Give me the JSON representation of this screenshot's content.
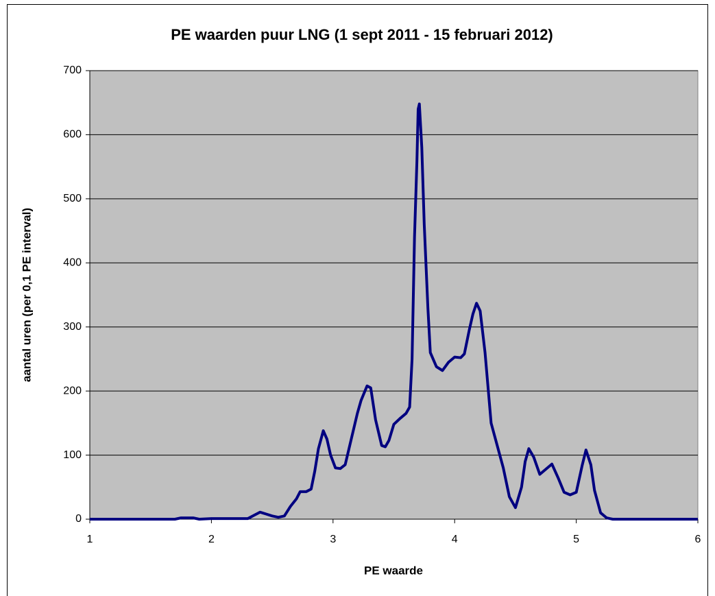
{
  "chart_data": {
    "type": "line",
    "title": "PE waarden puur LNG (1 sept 2011 - 15 februari 2012)",
    "x_label": "PE waarde",
    "y_label": "aantal uren (per 0,1 PE interval)",
    "x": [
      1.0,
      1.2,
      1.4,
      1.6,
      1.7,
      1.75,
      1.85,
      1.9,
      2.0,
      2.1,
      2.3,
      2.35,
      2.4,
      2.45,
      2.5,
      2.55,
      2.6,
      2.65,
      2.7,
      2.73,
      2.78,
      2.82,
      2.85,
      2.88,
      2.92,
      2.95,
      2.98,
      3.02,
      3.06,
      3.1,
      3.15,
      3.2,
      3.23,
      3.28,
      3.31,
      3.35,
      3.4,
      3.43,
      3.46,
      3.5,
      3.55,
      3.6,
      3.63,
      3.65,
      3.67,
      3.69,
      3.7,
      3.71,
      3.73,
      3.75,
      3.78,
      3.8,
      3.85,
      3.9,
      3.95,
      4.0,
      4.05,
      4.08,
      4.12,
      4.15,
      4.18,
      4.21,
      4.25,
      4.3,
      4.35,
      4.4,
      4.45,
      4.5,
      4.55,
      4.58,
      4.61,
      4.65,
      4.7,
      4.75,
      4.8,
      4.85,
      4.9,
      4.95,
      5.0,
      5.05,
      5.08,
      5.12,
      5.15,
      5.2,
      5.25,
      5.3,
      5.5,
      6.0
    ],
    "series": [
      {
        "name": "PE waarden",
        "color": "#000080",
        "values": [
          0,
          0,
          0,
          0,
          0,
          2,
          2,
          0,
          1,
          1,
          1,
          6,
          11,
          8,
          5,
          3,
          5,
          20,
          32,
          43,
          43,
          47,
          75,
          110,
          138,
          125,
          100,
          80,
          79,
          85,
          125,
          165,
          185,
          208,
          205,
          155,
          115,
          113,
          123,
          148,
          157,
          165,
          175,
          250,
          440,
          560,
          640,
          648,
          580,
          460,
          330,
          260,
          238,
          232,
          245,
          253,
          252,
          258,
          295,
          320,
          337,
          325,
          260,
          150,
          115,
          80,
          35,
          18,
          50,
          90,
          110,
          97,
          70,
          78,
          86,
          65,
          42,
          38,
          42,
          85,
          108,
          85,
          45,
          10,
          2,
          0,
          0,
          0
        ]
      }
    ],
    "xlim": [
      1,
      6
    ],
    "xticks": [
      1,
      2,
      3,
      4,
      5,
      6
    ],
    "ylim": [
      0,
      700
    ],
    "yticks": [
      0,
      100,
      200,
      300,
      400,
      500,
      600,
      700
    ],
    "grid": true
  }
}
